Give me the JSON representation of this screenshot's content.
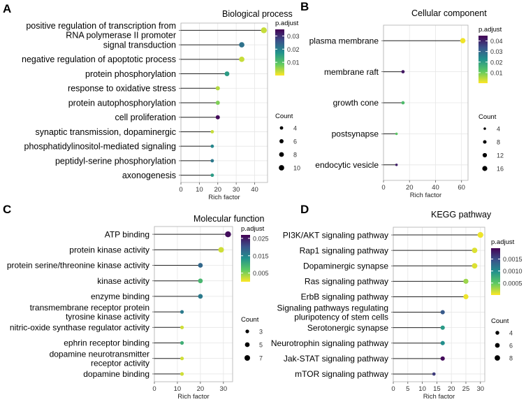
{
  "figure": {
    "x_axis_label": "Rich factor",
    "legend_color_title": "p.adjust",
    "legend_size_title": "Count"
  },
  "chart_data": [
    {
      "panel": "A",
      "type": "scatter",
      "title": "Biological  process",
      "xlabel": "Rich factor",
      "xlim": [
        0,
        47
      ],
      "xticks": [
        0,
        10,
        20,
        30,
        40
      ],
      "categories": [
        "positive regulation of transcription from RNA polymerase II promoter",
        "signal transduction",
        "negative regulation of apoptotic process",
        "protein phosphorylation",
        "response to oxidative stress",
        "protein autophosphorylation",
        "cell proliferation",
        "synaptic transmission, dopaminergic",
        "phosphatidylinositol-mediated signaling",
        "peptidyl-serine phosphorylation",
        "axonogenesis"
      ],
      "labels": [
        [
          "positive regulation of transcription from",
          "RNA polymerase II promoter"
        ],
        [
          "signal transduction"
        ],
        [
          "negative regulation of apoptotic process"
        ],
        [
          "protein phosphorylation"
        ],
        [
          "response to oxidative stress"
        ],
        [
          "protein autophosphorylation"
        ],
        [
          "cell proliferation"
        ],
        [
          "synaptic transmission, dopaminergic"
        ],
        [
          "phosphatidylinositol-mediated signaling"
        ],
        [
          "peptidyl-serine phosphorylation"
        ],
        [
          "axonogenesis"
        ]
      ],
      "rich_factor": [
        45,
        33,
        33,
        25,
        20,
        20,
        20,
        17,
        17,
        17,
        17
      ],
      "count": [
        12,
        10,
        10,
        8,
        6,
        6,
        6,
        4,
        4,
        4,
        4
      ],
      "p_adjust": [
        0.003,
        0.022,
        0.003,
        0.016,
        0.004,
        0.007,
        0.034,
        0.003,
        0.019,
        0.021,
        0.016
      ],
      "color_legend": {
        "range": [
          0,
          0.035
        ],
        "ticks": [
          0.01,
          0.02,
          0.03
        ],
        "tick_labels": [
          "0.01",
          "0.02",
          "0.03"
        ]
      },
      "size_legend": {
        "values": [
          4,
          6,
          8,
          10
        ],
        "labels": [
          "4",
          "6",
          "8",
          "10"
        ]
      }
    },
    {
      "panel": "B",
      "type": "scatter",
      "title": "Cellular component",
      "xlabel": "Rich factor",
      "xlim": [
        0,
        65
      ],
      "xticks": [
        0,
        20,
        40,
        60
      ],
      "categories": [
        "plasma membrane",
        "membrane raft",
        "growth cone",
        "postsynapse",
        "endocytic vesicle"
      ],
      "labels": [
        [
          "plasma membrane"
        ],
        [
          "membrane raft"
        ],
        [
          "growth cone"
        ],
        [
          "postsynapse"
        ],
        [
          "endocytic vesicle"
        ]
      ],
      "rich_factor": [
        61,
        15,
        15,
        10,
        10
      ],
      "count": [
        18,
        7,
        7,
        4,
        4
      ],
      "p_adjust": [
        0.001,
        0.042,
        0.014,
        0.012,
        0.041
      ],
      "color_legend": {
        "range": [
          0,
          0.045
        ],
        "ticks": [
          0.01,
          0.02,
          0.03,
          0.04
        ],
        "tick_labels": [
          "0.01",
          "0.02",
          "0.03",
          "0.04"
        ]
      },
      "size_legend": {
        "values": [
          4,
          8,
          12,
          16
        ],
        "labels": [
          "4",
          "8",
          "12",
          "16"
        ]
      }
    },
    {
      "panel": "C",
      "type": "scatter",
      "title": "Molecular function",
      "xlabel": "Rich factor",
      "xlim": [
        0,
        34
      ],
      "xticks": [
        0,
        10,
        20,
        30
      ],
      "categories": [
        "ATP binding",
        "protein kinase activity",
        "protein serine/threonine kinase activity",
        "kinase activity",
        "enzyme binding",
        "transmembrane receptor protein tyrosine kinase activity",
        "nitric-oxide synthase regulator activity",
        "ephrin receptor binding",
        "dopamine neurotransmitter receptor activity",
        "dopamine binding"
      ],
      "labels": [
        [
          "ATP binding"
        ],
        [
          "protein kinase activity"
        ],
        [
          "protein serine/threonine kinase activity"
        ],
        [
          "kinase activity"
        ],
        [
          "enzyme binding"
        ],
        [
          "transmembrane receptor protein",
          "tyrosine kinase activity"
        ],
        [
          "nitric-oxide synthase regulator activity"
        ],
        [
          "ephrin receptor binding"
        ],
        [
          "dopamine neurotransmitter",
          "receptor activity"
        ],
        [
          "dopamine binding"
        ]
      ],
      "rich_factor": [
        32,
        29,
        20,
        20,
        20,
        12,
        12,
        12,
        12,
        12
      ],
      "count": [
        8,
        7,
        5,
        5,
        5,
        3,
        3,
        3,
        3,
        3
      ],
      "p_adjust": [
        0.026,
        0.002,
        0.018,
        0.009,
        0.016,
        0.016,
        0.002,
        0.01,
        0.002,
        0.002
      ],
      "color_legend": {
        "range": [
          0,
          0.027
        ],
        "ticks": [
          0.005,
          0.015,
          0.025
        ],
        "tick_labels": [
          "0.005",
          "0.015",
          "0.025"
        ]
      },
      "size_legend": {
        "values": [
          3,
          5,
          7
        ],
        "labels": [
          "3",
          "5",
          "7"
        ]
      }
    },
    {
      "panel": "D",
      "type": "scatter",
      "title": "KEGG pathway",
      "xlabel": "Rich factor",
      "xlim": [
        0,
        31.5
      ],
      "xticks": [
        0,
        5,
        10,
        15,
        20,
        25,
        30
      ],
      "categories": [
        "PI3K/AKT signaling pathway",
        "Rap1 signaling pathway",
        "Dopaminergic synapse",
        "Ras signaling pathway",
        "ErbB signaling pathway",
        "Signaling pathways regulating pluripotency of stem cells",
        "Serotonergic synapse",
        "Neurotrophin signaling pathway",
        "Jak-STAT signaling pathway",
        "mTOR signaling pathway"
      ],
      "labels": [
        [
          "PI3K/AKT signaling pathway"
        ],
        [
          "Rap1 signaling pathway"
        ],
        [
          "Dopaminergic synapse"
        ],
        [
          "Ras signaling pathway"
        ],
        [
          "ErbB signaling pathway"
        ],
        [
          "Signaling pathways regulating",
          "pluripotency of stem cells"
        ],
        [
          "Serotonergic synapse"
        ],
        [
          "Neurotrophin signaling pathway"
        ],
        [
          "Jak-STAT signaling pathway"
        ],
        [
          "mTOR signaling pathway"
        ]
      ],
      "rich_factor": [
        30,
        28,
        28,
        25,
        25,
        17,
        17,
        17,
        17,
        14
      ],
      "count": [
        9,
        8,
        8,
        7,
        7,
        5,
        5,
        5,
        5,
        3
      ],
      "p_adjust": [
        5e-05,
        0.0001,
        0.0001,
        0.0003,
        5e-05,
        0.0014,
        0.0009,
        0.001,
        0.0019,
        0.0016
      ],
      "color_legend": {
        "range": [
          0,
          0.00195
        ],
        "ticks": [
          0.0005,
          0.001,
          0.0015
        ],
        "tick_labels": [
          "0.0005",
          "0.0010",
          "0.0015"
        ]
      },
      "size_legend": {
        "values": [
          4,
          6,
          8
        ],
        "labels": [
          "4",
          "6",
          "8"
        ]
      }
    }
  ]
}
